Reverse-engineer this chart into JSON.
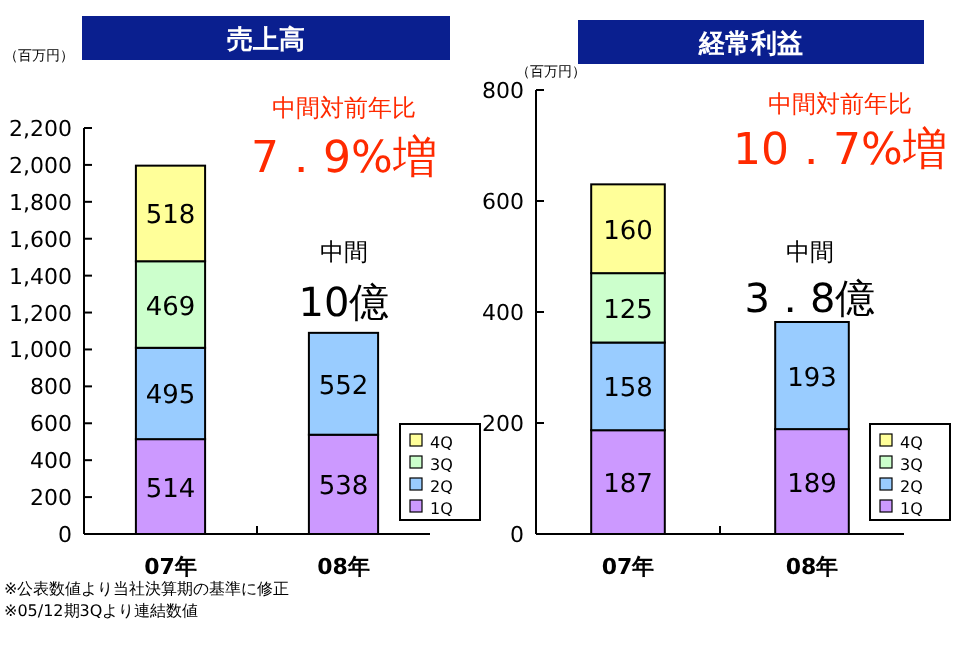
{
  "chart_data": [
    {
      "type": "bar",
      "title": "売上高",
      "ylabel": "（百万円）",
      "categories": [
        "07年",
        "08年"
      ],
      "stacked": true,
      "data_labels": true,
      "legend": "bottom right",
      "grid": false,
      "series": [
        {
          "name": "1Q",
          "color": "#cc99ff",
          "values": [
            514,
            538
          ]
        },
        {
          "name": "2Q",
          "color": "#99ccff",
          "values": [
            495,
            552
          ]
        },
        {
          "name": "3Q",
          "color": "#ccffcc",
          "values": [
            469,
            null
          ]
        },
        {
          "name": "4Q",
          "color": "#ffff99",
          "values": [
            518,
            null
          ]
        }
      ],
      "ylim": [
        0,
        2200
      ],
      "yticks": [
        0,
        200,
        400,
        600,
        800,
        {
          "value": 1000,
          "label": "1,000"
        },
        {
          "value": 1200,
          "label": "1,200"
        },
        {
          "value": 1400,
          "label": "1,400"
        },
        {
          "value": 1600,
          "label": "1,600"
        },
        {
          "value": 1800,
          "label": "1,800"
        },
        {
          "value": 2000,
          "label": "2,000"
        },
        {
          "value": 2200,
          "label": "2,200"
        }
      ],
      "annotations": [
        "中間対前年比",
        "7．9%増",
        "中間",
        "10億",
        "※公表数値より当社決算期の基準に修正",
        "※05/12期3Qより連結数値"
      ]
    },
    {
      "type": "bar",
      "title": "経常利益",
      "ylabel": "（百万円）",
      "categories": [
        "07年",
        "08年"
      ],
      "stacked": true,
      "data_labels": true,
      "legend": "bottom right",
      "grid": false,
      "series": [
        {
          "name": "1Q",
          "color": "#cc99ff",
          "values": [
            187,
            189
          ]
        },
        {
          "name": "2Q",
          "color": "#99ccff",
          "values": [
            158,
            193
          ]
        },
        {
          "name": "3Q",
          "color": "#ccffcc",
          "values": [
            125,
            null
          ]
        },
        {
          "name": "4Q",
          "color": "#ffff99",
          "values": [
            160,
            null
          ]
        }
      ],
      "ylim": [
        0,
        800
      ],
      "yticks": [
        0,
        200,
        400,
        600,
        800
      ],
      "annotations": [
        "中間対前年比",
        "10．7%増",
        "中間",
        "3．8億"
      ]
    }
  ]
}
